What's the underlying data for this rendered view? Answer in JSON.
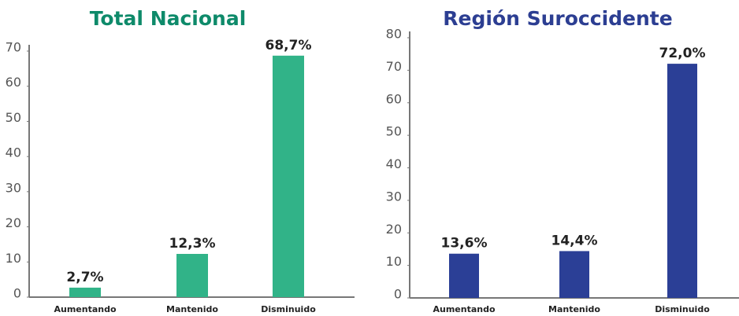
{
  "chart_data": [
    {
      "type": "bar",
      "title": "Total Nacional",
      "categories": [
        "Aumentando",
        "Mantenido",
        "Disminuido"
      ],
      "values": [
        2.7,
        12.3,
        68.7
      ],
      "value_labels": [
        "2,7%",
        "12,3%",
        "68,7%"
      ],
      "color": "#31b388",
      "title_color": "#0e8a6a",
      "ylim": [
        0,
        70
      ],
      "yticks": [
        0,
        10,
        20,
        30,
        40,
        50,
        60,
        70
      ]
    },
    {
      "type": "bar",
      "title": "Región Suroccidente",
      "categories": [
        "Aumentando",
        "Mantenido",
        "Disminuido"
      ],
      "values": [
        13.6,
        14.4,
        72.0
      ],
      "value_labels": [
        "13,6%",
        "14,4%",
        "72,0%"
      ],
      "color": "#2b3f96",
      "title_color": "#2c3e92",
      "ylim": [
        0,
        80
      ],
      "yticks": [
        0,
        10,
        20,
        30,
        40,
        50,
        60,
        70,
        80
      ]
    }
  ]
}
